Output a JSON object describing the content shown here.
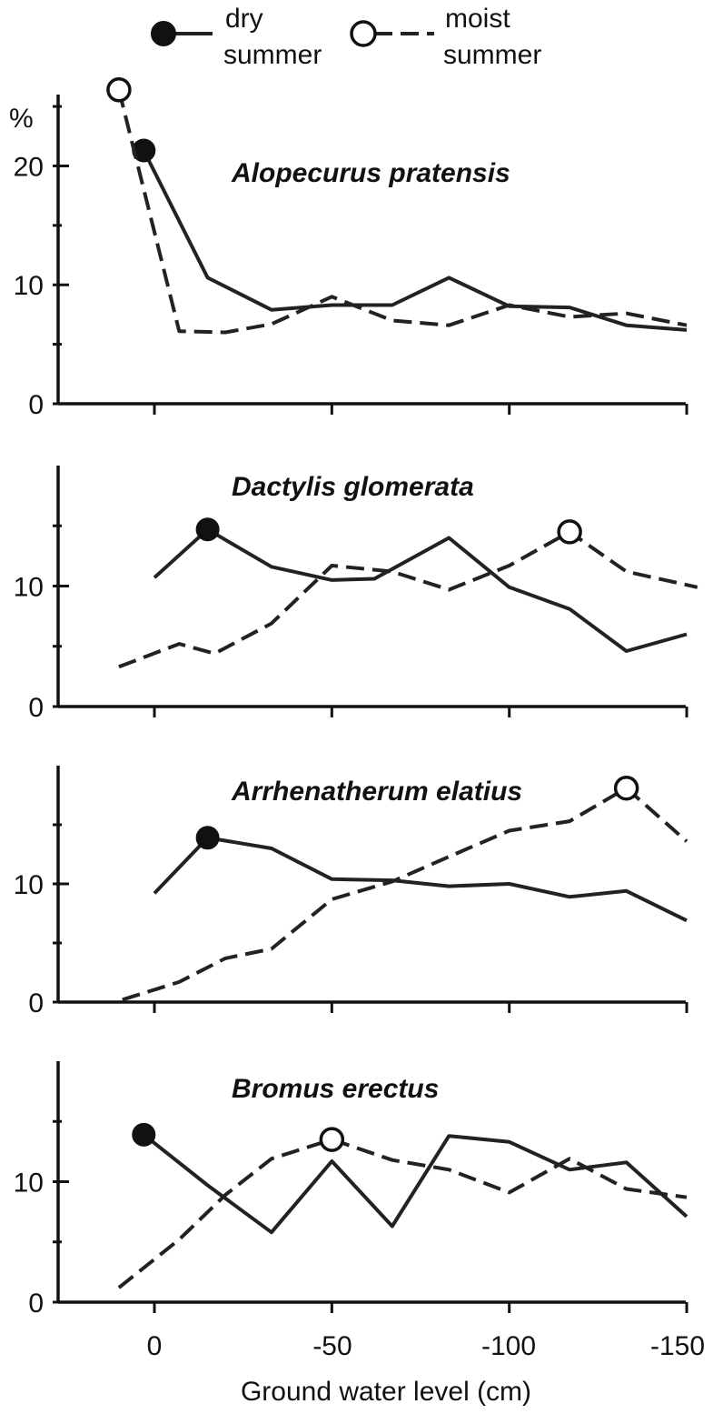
{
  "legend": {
    "dry_label_line1": "dry",
    "dry_label_line2": "summer",
    "moist_label_line1": "moist",
    "moist_label_line2": "summer"
  },
  "x_axis": {
    "title": "Ground water level  (cm)",
    "tick_labels": [
      "0",
      "-50",
      "-100",
      "-150"
    ]
  },
  "chart_data": [
    {
      "type": "line",
      "title": "Alopecurus pratensis",
      "ylabel": "%",
      "xlim": [
        25,
        -150
      ],
      "ylim": [
        0,
        26
      ],
      "y_tick_labels": [
        "0",
        "10",
        "20"
      ],
      "series": [
        {
          "name": "dry summer",
          "x": [
            3,
            -15,
            -33,
            -50,
            -67,
            -83,
            -100,
            -117,
            -133,
            -150
          ],
          "y": [
            21.3,
            10.6,
            7.9,
            8.3,
            8.3,
            10.6,
            8.2,
            8.1,
            6.6,
            6.2
          ],
          "highlight_index": 0
        },
        {
          "name": "moist summer",
          "x": [
            10,
            -7,
            -20,
            -33,
            -50,
            -67,
            -83,
            -100,
            -117,
            -133,
            -150
          ],
          "y": [
            26.4,
            6.1,
            6.0,
            6.7,
            9.0,
            7.0,
            6.6,
            8.3,
            7.3,
            7.6,
            6.6
          ],
          "highlight_index": 0
        }
      ]
    },
    {
      "type": "line",
      "title": "Dactylis glomerata",
      "xlim": [
        25,
        -150
      ],
      "ylim": [
        0,
        20
      ],
      "y_tick_labels": [
        "0",
        "10"
      ],
      "series": [
        {
          "name": "dry summer",
          "x": [
            0,
            -15,
            -33,
            -50,
            -62,
            -83,
            -100,
            -117,
            -133,
            -150
          ],
          "y": [
            10.7,
            14.7,
            11.6,
            10.5,
            10.6,
            14.0,
            9.9,
            8.1,
            4.6,
            6.0
          ],
          "highlight_index": 1
        },
        {
          "name": "moist summer",
          "x": [
            10,
            -7,
            -17,
            -33,
            -50,
            -67,
            -83,
            -100,
            -117,
            -133,
            -153
          ],
          "y": [
            3.3,
            5.2,
            4.4,
            6.9,
            11.7,
            11.2,
            9.7,
            11.7,
            14.5,
            11.2,
            9.9
          ],
          "highlight_index": 8
        }
      ]
    },
    {
      "type": "line",
      "title": "Arrhenatherum elatius",
      "xlim": [
        25,
        -150
      ],
      "ylim": [
        0,
        20
      ],
      "y_tick_labels": [
        "0",
        "10"
      ],
      "series": [
        {
          "name": "dry summer",
          "x": [
            0,
            -15,
            -33,
            -50,
            -67,
            -83,
            -100,
            -117,
            -133,
            -150
          ],
          "y": [
            9.2,
            13.9,
            13.0,
            10.4,
            10.3,
            9.8,
            10.0,
            8.9,
            9.4,
            6.9
          ],
          "highlight_index": 1
        },
        {
          "name": "moist summer",
          "x": [
            9,
            -7,
            -20,
            -33,
            -50,
            -67,
            -83,
            -100,
            -117,
            -133,
            -150
          ],
          "y": [
            0.2,
            1.7,
            3.7,
            4.5,
            8.7,
            10.2,
            12.3,
            14.5,
            15.3,
            18.1,
            13.6
          ],
          "highlight_index": 9
        }
      ]
    },
    {
      "type": "line",
      "title": "Bromus erectus",
      "xlim": [
        25,
        -150
      ],
      "ylim": [
        0,
        20
      ],
      "y_tick_labels": [
        "0",
        "10"
      ],
      "series": [
        {
          "name": "dry summer",
          "x": [
            3,
            -15,
            -33,
            -50,
            -67,
            -83,
            -100,
            -117,
            -133,
            -150
          ],
          "y": [
            13.9,
            9.7,
            5.8,
            11.7,
            6.3,
            13.8,
            13.3,
            11.0,
            11.6,
            7.1
          ],
          "highlight_index": 0
        },
        {
          "name": "moist summer",
          "x": [
            10,
            -7,
            -20,
            -33,
            -50,
            -67,
            -83,
            -100,
            -117,
            -133,
            -150
          ],
          "y": [
            1.2,
            5.2,
            8.9,
            11.9,
            13.5,
            11.8,
            11.0,
            9.1,
            11.9,
            9.4,
            8.7
          ],
          "highlight_index": 4
        }
      ]
    }
  ]
}
